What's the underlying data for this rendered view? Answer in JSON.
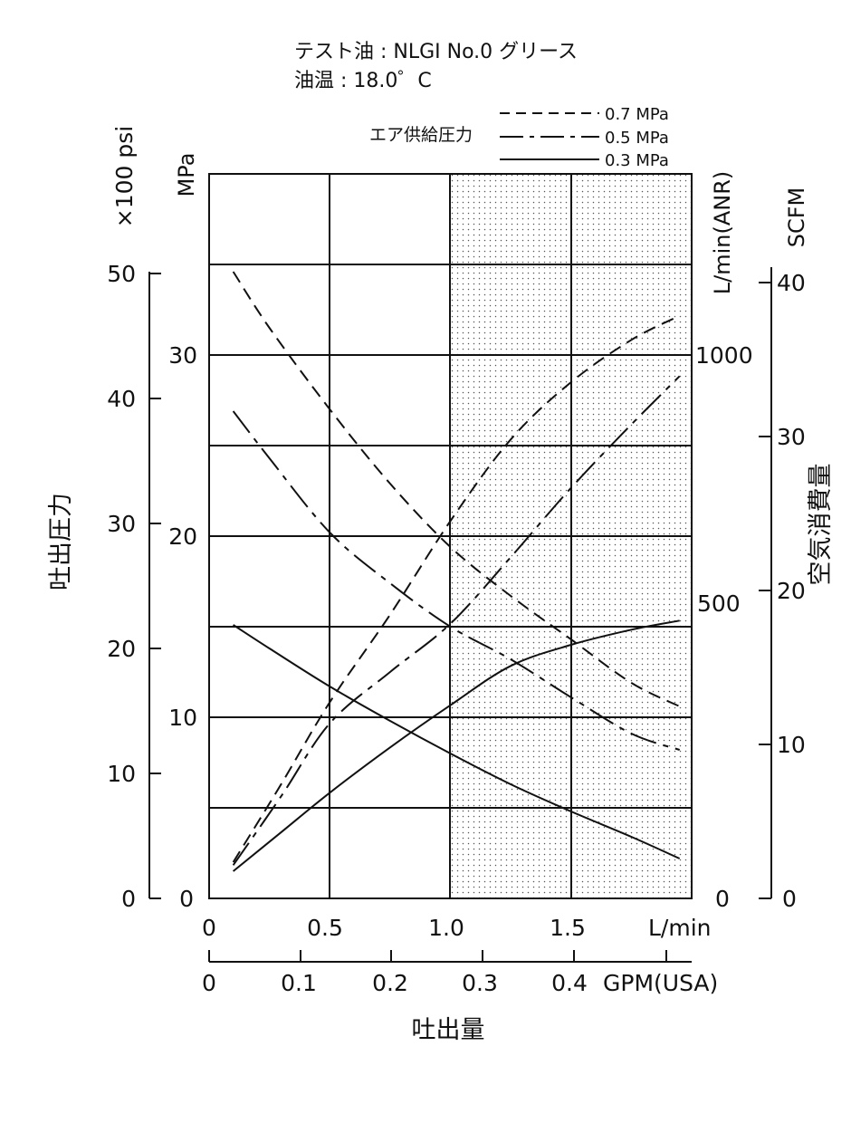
{
  "header": {
    "test_oil": "テスト油 : NLGI No.0 グリース",
    "oil_temp": "油温 : 18.0゜C"
  },
  "legend": {
    "title": "エア供給圧力",
    "placement": "top-right",
    "items": [
      "0.7 MPa",
      "0.5 MPa",
      "0.3 MPa"
    ]
  },
  "axes": {
    "psi_title": "×100 psi",
    "mpa_title": "MPa",
    "pressure_title": "吐出圧力",
    "lmin_anr_title": "L/min(ANR)",
    "scfm_title": "SCFM",
    "air_consumption_title": "空気消費量",
    "flow_title": "吐出量",
    "lmin_unit": "L/min",
    "gpm_unit": "GPM(USA)",
    "psi_ticks": [
      "0",
      "10",
      "20",
      "30",
      "40",
      "50"
    ],
    "mpa_ticks": [
      "0",
      "10",
      "20",
      "30"
    ],
    "anr_ticks": [
      "0",
      "500",
      "1000"
    ],
    "scfm_ticks": [
      "0",
      "10",
      "20",
      "30",
      "40"
    ],
    "lmin_ticks": [
      "0",
      "0.5",
      "1.0",
      "1.5"
    ],
    "gpm_ticks": [
      "0",
      "0.1",
      "0.2",
      "0.3",
      "0.4"
    ]
  },
  "chart_data": {
    "type": "line",
    "xlabel": "吐出量",
    "x_unit": "L/min",
    "xlim": [
      0,
      2.0
    ],
    "y_left_label": "吐出圧力",
    "y_left_unit": "MPa",
    "ylim_left": [
      0,
      40
    ],
    "y_right_label": "空気消費量",
    "y_right_unit": "L/min(ANR)",
    "ylim_right": [
      0,
      1200
    ],
    "grid": true,
    "shaded_region_x": [
      1.0,
      2.0
    ],
    "series": [
      {
        "name": "0.7 MPa",
        "style": "dashed",
        "measure": "吐出圧力",
        "axis": "MPa",
        "x": [
          0.1,
          0.25,
          0.5,
          0.75,
          1.0,
          1.25,
          1.5,
          1.75,
          1.95
        ],
        "y": [
          34.6,
          31.5,
          27.0,
          22.9,
          19.4,
          16.7,
          14.3,
          11.9,
          10.6
        ]
      },
      {
        "name": "0.7 MPa",
        "style": "dashed",
        "measure": "空気消費量",
        "axis": "L/min(ANR)",
        "x": [
          0.1,
          0.3,
          0.5,
          0.75,
          1.0,
          1.25,
          1.5,
          1.75,
          1.95
        ],
        "y": [
          60,
          190,
          325,
          470,
          625,
          760,
          855,
          925,
          965
        ]
      },
      {
        "name": "0.5 MPa",
        "style": "dash-dot",
        "measure": "吐出圧力",
        "axis": "MPa",
        "x": [
          0.1,
          0.25,
          0.5,
          0.75,
          1.0,
          1.25,
          1.5,
          1.75,
          1.95
        ],
        "y": [
          26.9,
          24.3,
          20.2,
          17.4,
          15.0,
          13.2,
          11.1,
          9.1,
          8.2
        ]
      },
      {
        "name": "0.5 MPa",
        "style": "dash-dot",
        "measure": "空気消費量",
        "axis": "L/min(ANR)",
        "x": [
          0.1,
          0.3,
          0.5,
          0.75,
          1.0,
          1.25,
          1.5,
          1.75,
          1.95
        ],
        "y": [
          55,
          170,
          290,
          375,
          455,
          565,
          680,
          785,
          865
        ]
      },
      {
        "name": "0.3 MPa",
        "style": "solid",
        "measure": "吐出圧力",
        "axis": "MPa",
        "x": [
          0.1,
          0.25,
          0.5,
          0.75,
          1.0,
          1.25,
          1.5,
          1.75,
          1.95
        ],
        "y": [
          15.1,
          13.8,
          11.7,
          9.8,
          8.0,
          6.3,
          4.8,
          3.4,
          2.2
        ]
      },
      {
        "name": "0.3 MPa",
        "style": "solid",
        "measure": "空気消費量",
        "axis": "L/min(ANR)",
        "x": [
          0.1,
          0.3,
          0.5,
          0.75,
          1.0,
          1.25,
          1.5,
          1.75,
          1.95
        ],
        "y": [
          45,
          110,
          175,
          250,
          320,
          385,
          420,
          445,
          460
        ]
      }
    ]
  }
}
